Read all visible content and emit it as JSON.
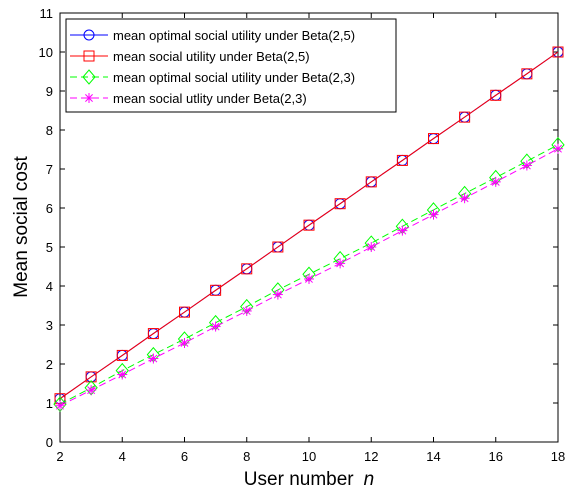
{
  "chart_data": {
    "type": "line",
    "title": "",
    "xlabel": "User number",
    "xlabel_var": "n",
    "ylabel": "Mean social cost",
    "xlim": [
      2,
      18
    ],
    "ylim": [
      0,
      11
    ],
    "xticks": [
      2,
      4,
      6,
      8,
      10,
      12,
      14,
      16,
      18
    ],
    "yticks": [
      0,
      1,
      2,
      3,
      4,
      5,
      6,
      7,
      8,
      9,
      10,
      11
    ],
    "grid": false,
    "legend_position": "top-left",
    "x": [
      2,
      3,
      4,
      5,
      6,
      7,
      8,
      9,
      10,
      11,
      12,
      13,
      14,
      15,
      16,
      17,
      18
    ],
    "series": [
      {
        "name": "mean optimal social utility under Beta(2,5)",
        "color": "#0000ff",
        "dash": "solid",
        "marker": "circle",
        "values": [
          1.11,
          1.67,
          2.22,
          2.78,
          3.33,
          3.89,
          4.44,
          5.0,
          5.56,
          6.11,
          6.67,
          7.22,
          7.78,
          8.33,
          8.89,
          9.44,
          10.0
        ]
      },
      {
        "name": "mean social utility under Beta(2,5)",
        "color": "#ff0000",
        "dash": "solid",
        "marker": "square",
        "values": [
          1.11,
          1.67,
          2.22,
          2.78,
          3.33,
          3.89,
          4.44,
          5.0,
          5.56,
          6.11,
          6.67,
          7.22,
          7.78,
          8.33,
          8.89,
          9.44,
          10.0
        ]
      },
      {
        "name": "mean optimal social utility under Beta(2,3)",
        "color": "#00ff00",
        "dash": "dashed",
        "marker": "diamond",
        "values": [
          0.97,
          1.39,
          1.83,
          2.24,
          2.64,
          3.06,
          3.47,
          3.9,
          4.3,
          4.7,
          5.1,
          5.53,
          5.95,
          6.37,
          6.78,
          7.2,
          7.62
        ]
      },
      {
        "name": "mean social utlity under Beta(2,3)",
        "color": "#ff00ff",
        "dash": "dashed",
        "marker": "asterisk",
        "values": [
          0.93,
          1.33,
          1.73,
          2.14,
          2.54,
          2.96,
          3.36,
          3.78,
          4.18,
          4.58,
          5.0,
          5.42,
          5.83,
          6.25,
          6.67,
          7.09,
          7.52
        ]
      }
    ]
  }
}
